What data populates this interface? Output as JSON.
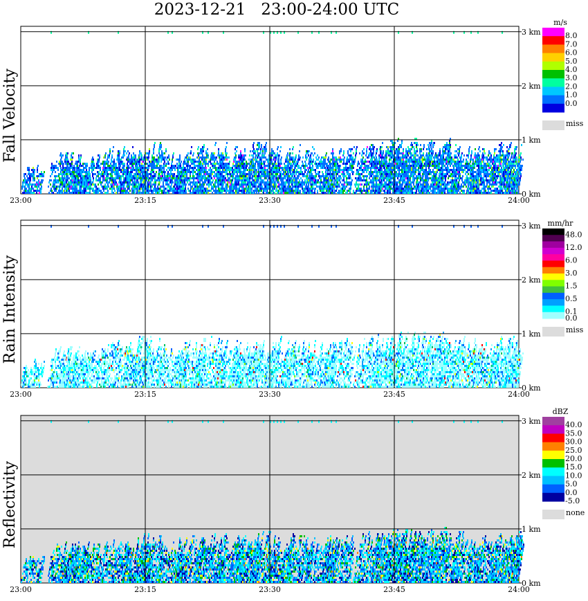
{
  "title": "2023-12-21   23:00-24:00 UTC",
  "chart_data": [
    {
      "type": "heatmap",
      "ylabel": "Fall Velocity",
      "unit": "m/s",
      "missing_label": "miss",
      "x_ticks": [
        "23:00",
        "23:15",
        "23:30",
        "23:45",
        "24:00"
      ],
      "y_ticks": [
        "0 km",
        "1 km",
        "2 km",
        "3 km"
      ],
      "ylim_km": [
        0,
        3.1
      ],
      "background": "#ffffff",
      "scale_labels": [
        "8.0",
        "7.0",
        "6.0",
        "5.0",
        "4.0",
        "3.0",
        "2.0",
        "1.0",
        "0.0"
      ],
      "colors": [
        "#ff00ff",
        "#ff0000",
        "#ff8000",
        "#ffd000",
        "#b0ff00",
        "#00c000",
        "#00ffa0",
        "#00c8ff",
        "#0070ff",
        "#0000e0"
      ],
      "palette": [
        "#0000e0",
        "#0070ff",
        "#00c8ff",
        "#00ffa0",
        "#00c000",
        "#b0ff00",
        "#ff00ff"
      ],
      "weights": [
        12,
        44,
        20,
        8,
        6,
        2,
        1
      ]
    },
    {
      "type": "heatmap",
      "ylabel": "Rain Intensity",
      "unit": "mm/hr",
      "missing_label": "miss",
      "x_ticks": [
        "23:00",
        "23:15",
        "23:30",
        "23:45",
        "24:00"
      ],
      "y_ticks": [
        "0 km",
        "1 km",
        "2 km",
        "3 km"
      ],
      "ylim_km": [
        0,
        3.1
      ],
      "background": "#ffffff",
      "scale_labels": [
        "48.0",
        "",
        "12.0",
        "",
        "6.0",
        "",
        "3.0",
        "",
        "1.5",
        "",
        "0.5",
        "",
        "0.1",
        "0.0"
      ],
      "colors": [
        "#000000",
        "#500050",
        "#a000a0",
        "#d000d0",
        "#ff00a0",
        "#ff0000",
        "#ff8000",
        "#ffff00",
        "#80ff00",
        "#40c040",
        "#0060ff",
        "#00a0ff",
        "#00ffff",
        "#a0ffff"
      ],
      "palette": [
        "#a0ffff",
        "#00ffff",
        "#00a0ff",
        "#0060ff",
        "#00c060",
        "#80ff00",
        "#ffff00",
        "#ff0000"
      ],
      "weights": [
        55,
        22,
        10,
        8,
        2,
        1,
        1,
        1
      ]
    },
    {
      "type": "heatmap",
      "ylabel": "Reflectivity",
      "unit": "dBZ",
      "missing_label": "none",
      "x_ticks": [
        "23:00",
        "23:15",
        "23:30",
        "23:45",
        "24:00"
      ],
      "y_ticks": [
        "0 km",
        "1 km",
        "2 km",
        "3 km"
      ],
      "ylim_km": [
        0,
        3.1
      ],
      "background": "#dcdcdc",
      "scale_labels": [
        "40.0",
        "35.0",
        "30.0",
        "25.0",
        "20.0",
        "15.0",
        "10.0",
        "5.0",
        "0.0",
        "-5.0"
      ],
      "colors": [
        "#a040a0",
        "#c000c0",
        "#ff0000",
        "#ff8000",
        "#ffff00",
        "#00c000",
        "#00ffff",
        "#00c0ff",
        "#0060ff",
        "#0000a0"
      ],
      "palette": [
        "#0000a0",
        "#0060ff",
        "#00c0ff",
        "#00ffff",
        "#00c000",
        "#ffff00",
        "#ff8000"
      ],
      "weights": [
        14,
        20,
        30,
        20,
        10,
        4,
        1
      ]
    }
  ]
}
